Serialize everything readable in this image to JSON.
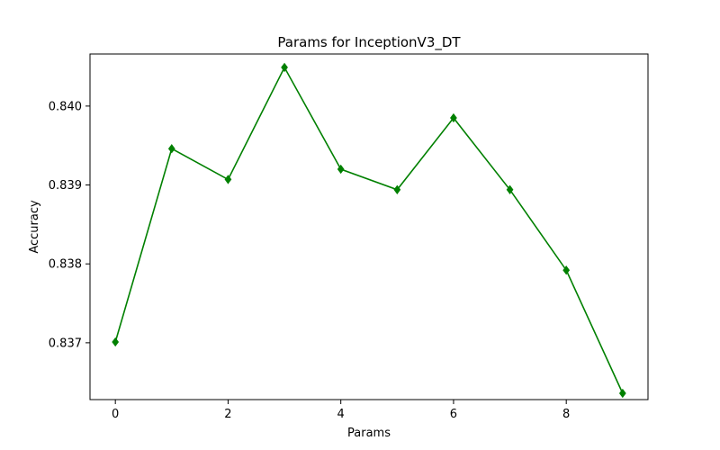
{
  "chart_data": {
    "type": "line",
    "title": "Params for InceptionV3_DT",
    "xlabel": "Params",
    "ylabel": "Accuracy",
    "x": [
      0,
      1,
      2,
      3,
      4,
      5,
      6,
      7,
      8,
      9
    ],
    "series": [
      {
        "values": [
          0.83701,
          0.83946,
          0.83907,
          0.84049,
          0.8392,
          0.83894,
          0.83985,
          0.83894,
          0.83792,
          0.83636
        ],
        "color": "#008000",
        "marker": "diamond"
      }
    ],
    "xlim": [
      -0.45,
      9.45
    ],
    "ylim": [
      0.83628,
      0.84066
    ],
    "xticks": [
      0,
      2,
      4,
      6,
      8
    ],
    "xtick_labels": [
      "0",
      "2",
      "4",
      "6",
      "8"
    ],
    "yticks": [
      0.837,
      0.838,
      0.839,
      0.84
    ],
    "ytick_labels": [
      "0.837",
      "0.838",
      "0.839",
      "0.840"
    ],
    "grid": false,
    "legend": "none"
  }
}
